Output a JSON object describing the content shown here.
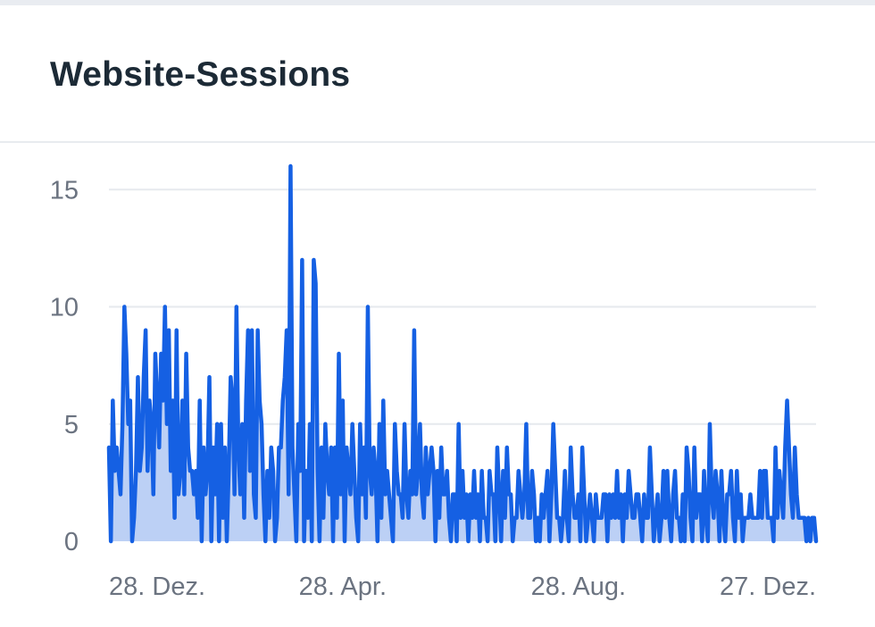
{
  "title": "Website-Sessions",
  "colors": {
    "line": "#1560e3",
    "area": "#bcd0f5",
    "grid": "#e6e9ee",
    "text": "#6b7380",
    "title": "#1c2a36"
  },
  "chart_data": {
    "type": "area",
    "title": "Website-Sessions",
    "xlabel": "",
    "ylabel": "",
    "ylim": [
      0,
      16
    ],
    "yticks": [
      0,
      5,
      10,
      15
    ],
    "grid": true,
    "xtick_labels": [
      {
        "label": "28. Dez.",
        "index": 0
      },
      {
        "label": "28. Apr.",
        "index": 121
      },
      {
        "label": "28. Aug.",
        "index": 243
      },
      {
        "label": "27. Dez.",
        "index": 364
      }
    ],
    "series": [
      {
        "name": "Sessions",
        "values": [
          4,
          0,
          6,
          3,
          4,
          3,
          2,
          5,
          10,
          8,
          5,
          6,
          0,
          1,
          3,
          7,
          3,
          4,
          7,
          9,
          3,
          6,
          5,
          2,
          8,
          6,
          4,
          8,
          6,
          10,
          5,
          9,
          3,
          6,
          1,
          9,
          2,
          3,
          6,
          2,
          8,
          4,
          3,
          3,
          2,
          3,
          1,
          6,
          0,
          4,
          2,
          3,
          7,
          0,
          4,
          2,
          5,
          0,
          5,
          1,
          4,
          0,
          3,
          7,
          6,
          2,
          10,
          4,
          2,
          5,
          1,
          6,
          9,
          3,
          9,
          2,
          1,
          9,
          6,
          5,
          2,
          0,
          3,
          1,
          4,
          3,
          0,
          1,
          4,
          4,
          6,
          7,
          9,
          2,
          16,
          4,
          2,
          0,
          5,
          3,
          12,
          0,
          3,
          1,
          5,
          0,
          12,
          11,
          3,
          0,
          4,
          1,
          5,
          3,
          2,
          4,
          0,
          4,
          1,
          8,
          2,
          6,
          0,
          4,
          3,
          2,
          5,
          3,
          1,
          0,
          5,
          2,
          4,
          1,
          10,
          3,
          2,
          4,
          3,
          0,
          5,
          1,
          6,
          2,
          3,
          2,
          1,
          0,
          5,
          3,
          2,
          2,
          1,
          5,
          2,
          1,
          3,
          2,
          9,
          2,
          3,
          5,
          2,
          1,
          4,
          2,
          3,
          4,
          3,
          0,
          3,
          1,
          4,
          2,
          2,
          3,
          1,
          0,
          2,
          2,
          0,
          5,
          1,
          3,
          1,
          2,
          0,
          2,
          1,
          3,
          1,
          2,
          0,
          3,
          1,
          1,
          0,
          3,
          2,
          2,
          0,
          4,
          2,
          0,
          3,
          1,
          4,
          2,
          2,
          0,
          1,
          1,
          3,
          2,
          1,
          2,
          5,
          1,
          1,
          3,
          2,
          0,
          1,
          0,
          2,
          1,
          2,
          3,
          0,
          2,
          5,
          3,
          1,
          1,
          0,
          1,
          3,
          1,
          0,
          4,
          2,
          1,
          1,
          2,
          0,
          4,
          2,
          0,
          1,
          2,
          1,
          0,
          2,
          1,
          1,
          1,
          2,
          2,
          0,
          2,
          1,
          2,
          1,
          3,
          1,
          2,
          0,
          2,
          1,
          3,
          2,
          1,
          1,
          2,
          2,
          1,
          0,
          2,
          1,
          1,
          4,
          2,
          0,
          1,
          2,
          0,
          1,
          3,
          1,
          3,
          1,
          0,
          2,
          3,
          1,
          1,
          0,
          2,
          0,
          4,
          3,
          1,
          0,
          4,
          1,
          2,
          2,
          0,
          3,
          1,
          0,
          5,
          2,
          1,
          3,
          2,
          0,
          3,
          1,
          0,
          2,
          2,
          3,
          1,
          0,
          3,
          1,
          2,
          0,
          1,
          1,
          1,
          2,
          1,
          1,
          1,
          1,
          3,
          1,
          3,
          3,
          1,
          1,
          1,
          0,
          4,
          1,
          3,
          2,
          1,
          4,
          6,
          4,
          2,
          1,
          4,
          2,
          1,
          1,
          1,
          1,
          0,
          1,
          0,
          1,
          1,
          0
        ]
      }
    ]
  }
}
